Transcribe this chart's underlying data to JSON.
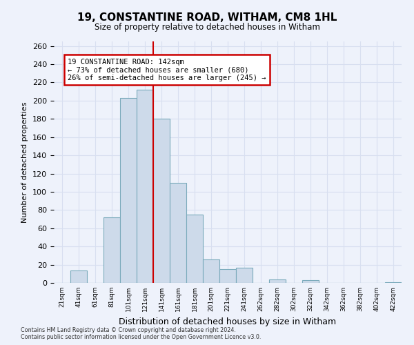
{
  "title": "19, CONSTANTINE ROAD, WITHAM, CM8 1HL",
  "subtitle": "Size of property relative to detached houses in Witham",
  "xlabel": "Distribution of detached houses by size in Witham",
  "ylabel": "Number of detached properties",
  "bin_labels": [
    "21sqm",
    "41sqm",
    "61sqm",
    "81sqm",
    "101sqm",
    "121sqm",
    "141sqm",
    "161sqm",
    "181sqm",
    "201sqm",
    "221sqm",
    "241sqm",
    "262sqm",
    "282sqm",
    "302sqm",
    "322sqm",
    "342sqm",
    "362sqm",
    "382sqm",
    "402sqm",
    "422sqm"
  ],
  "bar_heights": [
    0,
    14,
    0,
    72,
    203,
    212,
    180,
    110,
    75,
    26,
    15,
    17,
    0,
    4,
    0,
    3,
    0,
    0,
    0,
    0,
    1
  ],
  "bar_color": "#cddaea",
  "bar_edge_color": "#7aaabb",
  "bar_edge_width": 0.8,
  "vline_x": 6,
  "vline_color": "#cc0000",
  "annotation_title": "19 CONSTANTINE ROAD: 142sqm",
  "annotation_line1": "← 73% of detached houses are smaller (680)",
  "annotation_line2": "26% of semi-detached houses are larger (245) →",
  "annotation_box_color": "#ffffff",
  "annotation_box_edge": "#cc0000",
  "ylim": [
    0,
    265
  ],
  "yticks": [
    0,
    20,
    40,
    60,
    80,
    100,
    120,
    140,
    160,
    180,
    200,
    220,
    240,
    260
  ],
  "grid_color": "#d8dff0",
  "background_color": "#eef2fb",
  "footer1": "Contains HM Land Registry data © Crown copyright and database right 2024.",
  "footer2": "Contains public sector information licensed under the Open Government Licence v3.0."
}
